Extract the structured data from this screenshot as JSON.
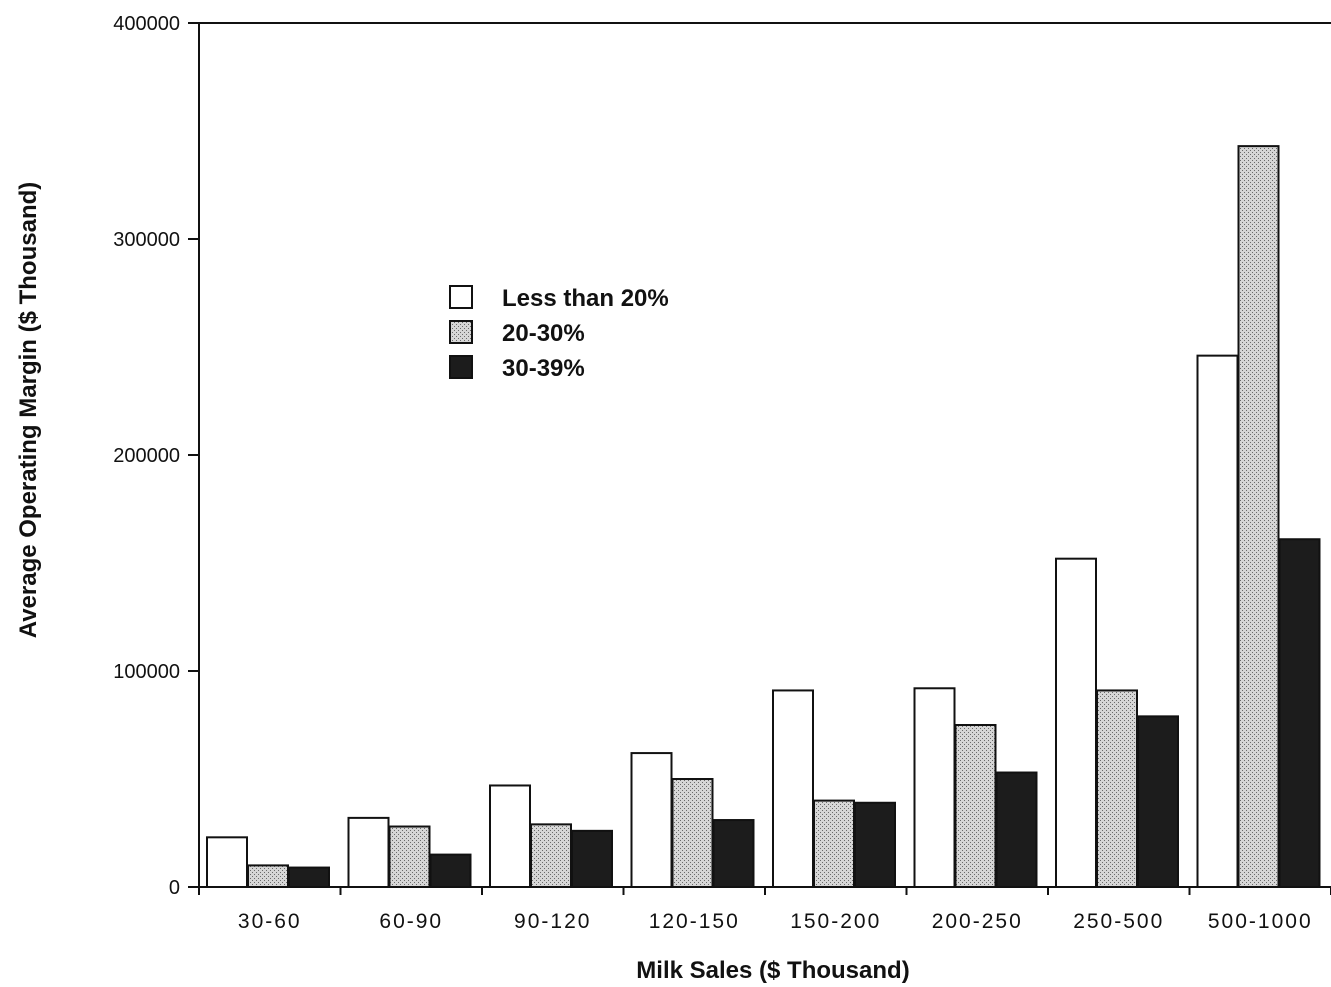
{
  "chart_data": {
    "type": "bar",
    "title": "",
    "xlabel": "Milk Sales ($ Thousand)",
    "ylabel": "Average Operating Margin ($ Thousand)",
    "ylim": [
      0,
      400000
    ],
    "yticks": [
      "0",
      "100000",
      "200000",
      "300000",
      "400000"
    ],
    "categories": [
      "30-60",
      "60-90",
      "90-120",
      "120-150",
      "150-200",
      "200-250",
      "250-500",
      "500-1000"
    ],
    "series": [
      {
        "name": "Less than 20%",
        "fill": "#ffffff",
        "values": [
          23000,
          32000,
          47000,
          62000,
          91000,
          92000,
          152000,
          246000
        ]
      },
      {
        "name": "20-30%",
        "fill": "#c8c8c8",
        "values": [
          10000,
          28000,
          29000,
          50000,
          40000,
          75000,
          91000,
          343000
        ]
      },
      {
        "name": "30-39%",
        "fill": "#1c1c1c",
        "values": [
          9000,
          15000,
          26000,
          31000,
          39000,
          53000,
          79000,
          161000
        ]
      }
    ],
    "legend_position": "upper-left-center",
    "grid": false
  }
}
